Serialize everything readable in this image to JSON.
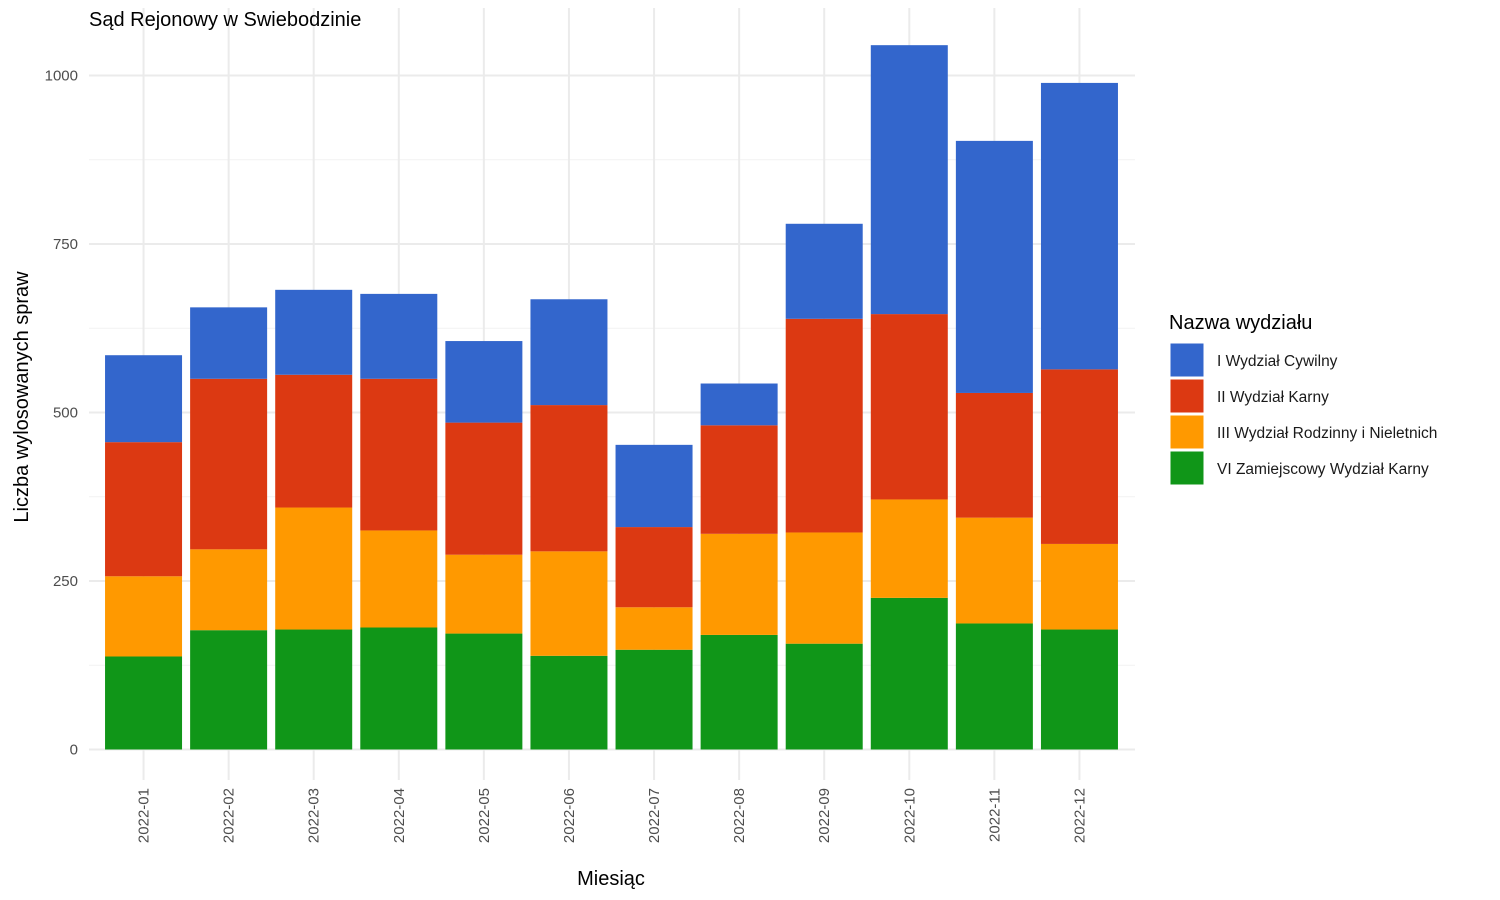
{
  "chart_data": {
    "type": "bar",
    "stacked": true,
    "title": "Sąd Rejonowy w Swiebodzinie",
    "xlabel": "Miesiąc",
    "ylabel": "Liczba wylosowanych spraw",
    "ylim": [
      0,
      1050
    ],
    "yticks": [
      0,
      250,
      500,
      750,
      1000
    ],
    "ytick_labels": [
      "0",
      "250",
      "500",
      "750",
      "1000"
    ],
    "grid": true,
    "legend_title": "Nazwa wydziału",
    "legend_position": "right",
    "categories": [
      "2022-01",
      "2022-02",
      "2022-03",
      "2022-04",
      "2022-05",
      "2022-06",
      "2022-07",
      "2022-08",
      "2022-09",
      "2022-10",
      "2022-11",
      "2022-12"
    ],
    "series": [
      {
        "name": "VI Zamiejscowy Wydział Karny",
        "color": "#109618",
        "values": [
          138,
          177,
          178,
          181,
          172,
          139,
          148,
          170,
          157,
          225,
          187,
          178
        ]
      },
      {
        "name": "III Wydział Rodzinny i Nieletnich",
        "color": "#ff9900",
        "values": [
          119,
          120,
          181,
          144,
          117,
          155,
          63,
          150,
          165,
          146,
          157,
          127
        ]
      },
      {
        "name": "II Wydział Karny",
        "color": "#dc3912",
        "values": [
          199,
          253,
          197,
          225,
          196,
          217,
          119,
          161,
          317,
          275,
          185,
          259
        ]
      },
      {
        "name": "I Wydział Cywilny",
        "color": "#3366cc",
        "values": [
          129,
          106,
          126,
          126,
          121,
          157,
          122,
          62,
          141,
          399,
          374,
          425
        ]
      }
    ],
    "legend_order": [
      3,
      2,
      1,
      0
    ]
  }
}
